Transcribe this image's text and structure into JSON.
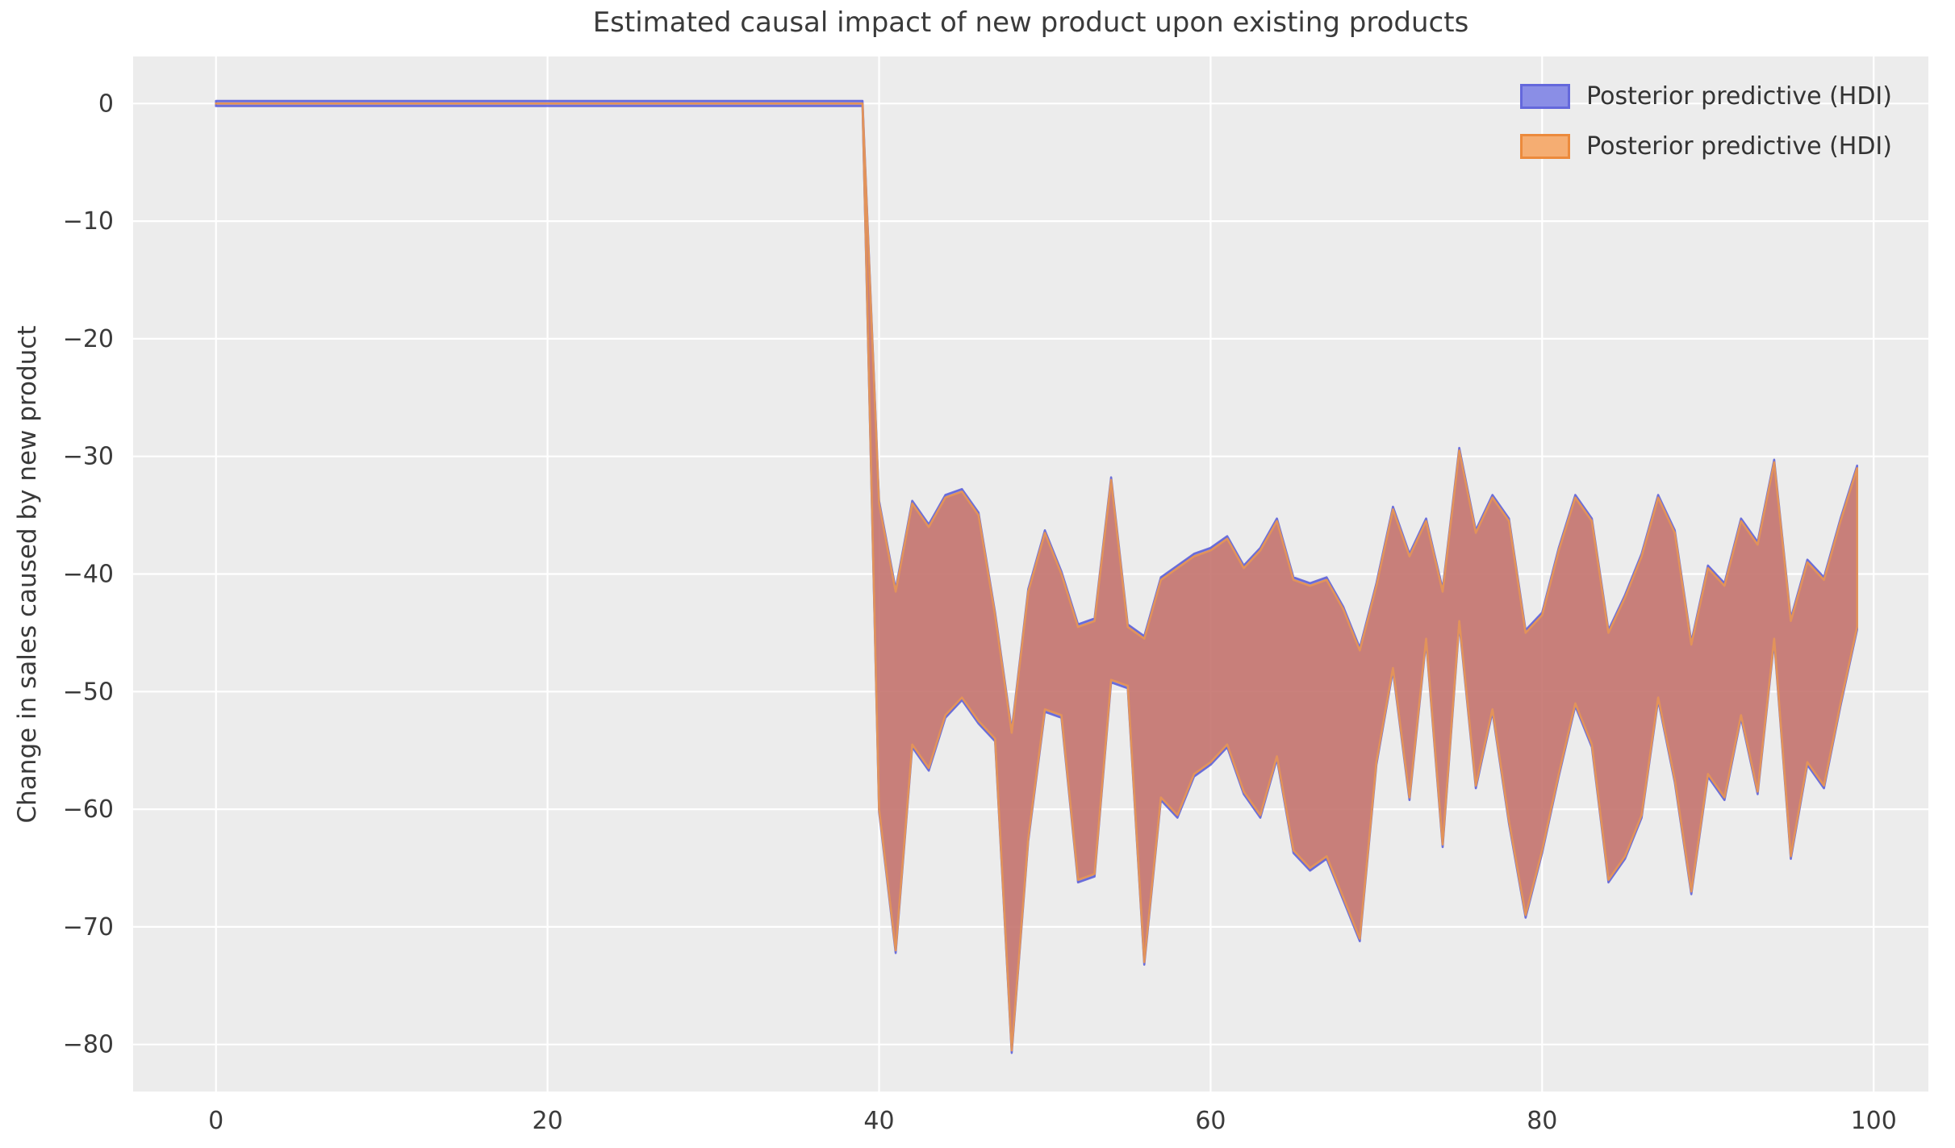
{
  "title": "Estimated causal impact of new product upon existing products",
  "ylabel": "Change in sales caused by new product",
  "legend": {
    "position": "upper right",
    "items": [
      {
        "label": "Posterior predictive (HDI)",
        "fill": "#8a8ee6",
        "stroke": "#6468dc"
      },
      {
        "label": "Posterior predictive (HDI)",
        "fill": "#f5ad72",
        "stroke": "#ec8a3c"
      }
    ]
  },
  "axes": {
    "background": "#ececec",
    "grid_color": "#ffffff",
    "tick_color": "#3b3b3b",
    "x_ticks": [
      0,
      20,
      40,
      60,
      80,
      100
    ],
    "y_ticks": [
      0,
      -10,
      -20,
      -30,
      -40,
      -50,
      -60,
      -70,
      -80
    ]
  },
  "chart_data": {
    "type": "area",
    "title": "Estimated causal impact of new product upon existing products",
    "xlabel": "",
    "ylabel": "Change in sales caused by new product",
    "xlim": [
      -5,
      103.3
    ],
    "ylim": [
      -84,
      4
    ],
    "grid": true,
    "legend_position": "upper right",
    "flat_segment": {
      "x_start": 0,
      "x_end": 39,
      "upper": 0,
      "lower": 0
    },
    "band_x": [
      40,
      41,
      42,
      43,
      44,
      45,
      46,
      47,
      48,
      49,
      50,
      51,
      52,
      53,
      54,
      55,
      56,
      57,
      58,
      59,
      60,
      61,
      62,
      63,
      64,
      65,
      66,
      67,
      68,
      69,
      70,
      71,
      72,
      73,
      74,
      75,
      76,
      77,
      78,
      79,
      80,
      81,
      82,
      83,
      84,
      85,
      86,
      87,
      88,
      89,
      90,
      91,
      92,
      93,
      94,
      95,
      96,
      97,
      98,
      99
    ],
    "band_upper": [
      -34,
      -41.5,
      -34,
      -36,
      -33.5,
      -33,
      -35,
      -43.5,
      -53.5,
      -41.5,
      -36.5,
      -40,
      -44.5,
      -44,
      -32,
      -44.5,
      -45.5,
      -40.5,
      -39.5,
      -38.5,
      -38,
      -37,
      -39.5,
      -38,
      -35.5,
      -40.5,
      -41,
      -40.5,
      -43,
      -46.5,
      -41,
      -34.5,
      -38.5,
      -35.5,
      -41.5,
      -29.5,
      -36.5,
      -33.5,
      -35.5,
      -45,
      -43.5,
      -38,
      -33.5,
      -35.5,
      -45,
      -42,
      -38.5,
      -33.5,
      -36.5,
      -46,
      -39.5,
      -41,
      -35.5,
      -37.5,
      -30.5,
      -44,
      -39,
      -40.5,
      -35.5,
      -31
    ],
    "band_lower": [
      -60,
      -72,
      -54.5,
      -56.5,
      -52,
      -50.5,
      -52.5,
      -54,
      -80.5,
      -62.5,
      -51.5,
      -52,
      -66,
      -65.5,
      -49,
      -49.5,
      -73,
      -59,
      -60.5,
      -57,
      -56,
      -54.5,
      -58.5,
      -60.5,
      -55.5,
      -63.5,
      -65,
      -64,
      -67.5,
      -71,
      -56,
      -48,
      -59,
      -45.5,
      -63,
      -44,
      -58,
      -51.5,
      -61,
      -69,
      -63.5,
      -57,
      -51,
      -54.5,
      -66,
      -64,
      -60.5,
      -50.5,
      -57.5,
      -67,
      -57,
      -59,
      -52,
      -58.5,
      -45.5,
      -64,
      -56,
      -58,
      -51,
      -44.5
    ],
    "series": [
      {
        "name": "Posterior predictive (HDI)",
        "role": "hdi-band-blue",
        "fill": "rgba(100,105,220,0.65)",
        "edge": "rgba(95,99,216,0.9)",
        "note": "blue HDI band, nearly identical bounds to orange band"
      },
      {
        "name": "Posterior predictive (HDI)",
        "role": "hdi-band-orange",
        "fill": "rgba(220,118,82,0.72)",
        "edge": "#e2935a",
        "note": "orange HDI band drawn on top; shared band_upper/band_lower bounds"
      }
    ]
  }
}
